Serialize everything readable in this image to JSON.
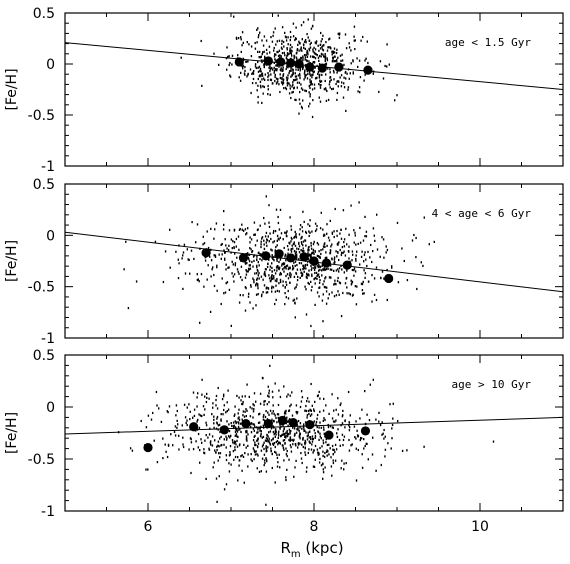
{
  "figure": {
    "xlabel_main": "R",
    "xlabel_sub": "m",
    "xlabel_unit": " (kpc)",
    "x_tick_labels": [
      "6",
      "8",
      "10"
    ]
  },
  "chart_data": [
    {
      "type": "scatter",
      "label": "age < 1.5 Gyr",
      "ylabel": "[Fe/H]",
      "xlim": [
        5,
        11
      ],
      "ylim": [
        -1,
        0.5
      ],
      "x_ticks": [
        6,
        8,
        10
      ],
      "y_ticks": [
        -1,
        -0.5,
        0,
        0.5
      ],
      "y_tick_labels": [
        "-1",
        "-0.5",
        "0",
        "0.5"
      ],
      "grid": false,
      "fit_line": {
        "x": [
          5,
          11
        ],
        "y": [
          0.21,
          -0.25
        ]
      },
      "binned_means": {
        "x": [
          7.1,
          7.45,
          7.6,
          7.72,
          7.82,
          7.95,
          8.1,
          8.3,
          8.65
        ],
        "y": [
          0.02,
          0.03,
          0.02,
          0.01,
          0.0,
          -0.03,
          -0.04,
          -0.03,
          -0.06
        ]
      },
      "scatter_cloud": {
        "x_center": 7.8,
        "x_sigma": 0.4,
        "y_center": 0.0,
        "y_sigma": 0.17,
        "n": 700
      }
    },
    {
      "type": "scatter",
      "label": "4 < age < 6 Gyr",
      "ylabel": "[Fe/H]",
      "xlim": [
        5,
        11
      ],
      "ylim": [
        -1,
        0.5
      ],
      "x_ticks": [
        6,
        8,
        10
      ],
      "y_ticks": [
        -1,
        -0.5,
        0,
        0.5
      ],
      "y_tick_labels": [
        "-1",
        "-0.5",
        "0",
        "0.5"
      ],
      "grid": false,
      "fit_line": {
        "x": [
          5,
          11
        ],
        "y": [
          0.03,
          -0.55
        ]
      },
      "binned_means": {
        "x": [
          6.7,
          7.15,
          7.42,
          7.58,
          7.72,
          7.88,
          8.0,
          8.15,
          8.4,
          8.9
        ],
        "y": [
          -0.17,
          -0.22,
          -0.2,
          -0.18,
          -0.22,
          -0.21,
          -0.25,
          -0.27,
          -0.29,
          -0.42
        ]
      },
      "scatter_cloud": {
        "x_center": 7.7,
        "x_sigma": 0.6,
        "y_center": -0.25,
        "y_sigma": 0.2,
        "n": 900
      }
    },
    {
      "type": "scatter",
      "label": "age > 10 Gyr",
      "ylabel": "[Fe/H]",
      "xlim": [
        5,
        11
      ],
      "ylim": [
        -1,
        0.5
      ],
      "x_ticks": [
        6,
        8,
        10
      ],
      "y_ticks": [
        -1,
        -0.5,
        0,
        0.5
      ],
      "y_tick_labels": [
        "-1",
        "-0.5",
        "0",
        "0.5"
      ],
      "grid": false,
      "fit_line": {
        "x": [
          5,
          11
        ],
        "y": [
          -0.26,
          -0.1
        ]
      },
      "binned_means": {
        "x": [
          6.0,
          6.55,
          6.92,
          7.18,
          7.45,
          7.62,
          7.75,
          7.95,
          8.18,
          8.62
        ],
        "y": [
          -0.39,
          -0.19,
          -0.22,
          -0.16,
          -0.16,
          -0.13,
          -0.15,
          -0.17,
          -0.27,
          -0.23
        ]
      },
      "scatter_cloud": {
        "x_center": 7.5,
        "x_sigma": 0.65,
        "y_center": -0.25,
        "y_sigma": 0.2,
        "n": 900
      }
    }
  ]
}
